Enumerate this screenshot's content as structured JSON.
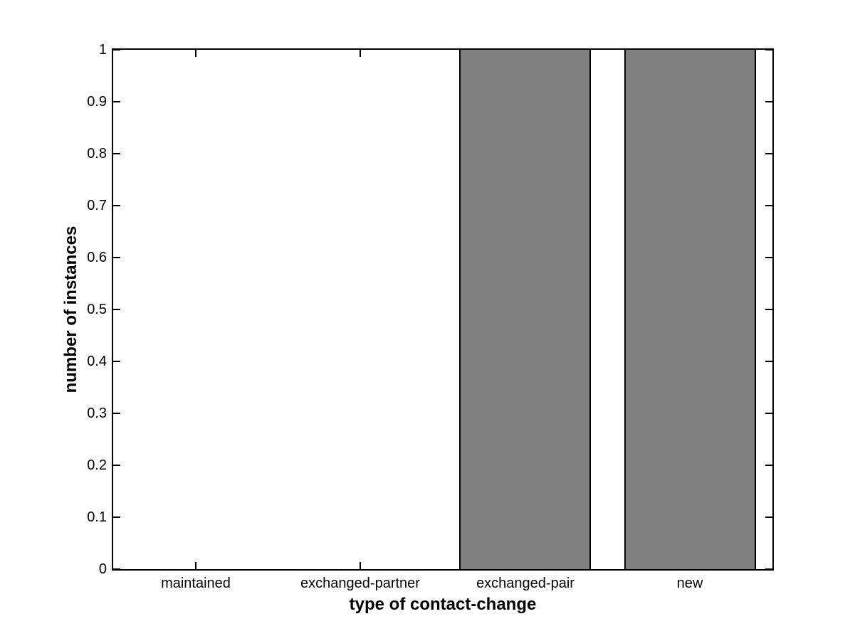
{
  "chart_data": {
    "type": "bar",
    "title": "",
    "categories": [
      "maintained",
      "exchanged-partner",
      "exchanged-pair",
      "new"
    ],
    "values": [
      0,
      0,
      1,
      1
    ],
    "xlabel": "type of contact-change",
    "ylabel": "number of instances",
    "ylim": [
      0,
      1
    ],
    "xlim": [
      0.5,
      4.5
    ],
    "yticks": [
      0,
      0.1,
      0.2,
      0.3,
      0.4,
      0.5,
      0.6,
      0.7,
      0.8,
      0.9,
      1
    ],
    "ytick_labels": [
      "0",
      "0.1",
      "0.2",
      "0.3",
      "0.4",
      "0.5",
      "0.6",
      "0.7",
      "0.8",
      "0.9",
      "1"
    ],
    "bar_width_fraction": 0.8,
    "bar_color": "#808080",
    "bar_edge_color": "#000000",
    "axis_color": "#000000",
    "background_color": "#ffffff",
    "grid": false,
    "legend": null,
    "box": true,
    "tick_direction": "in"
  }
}
